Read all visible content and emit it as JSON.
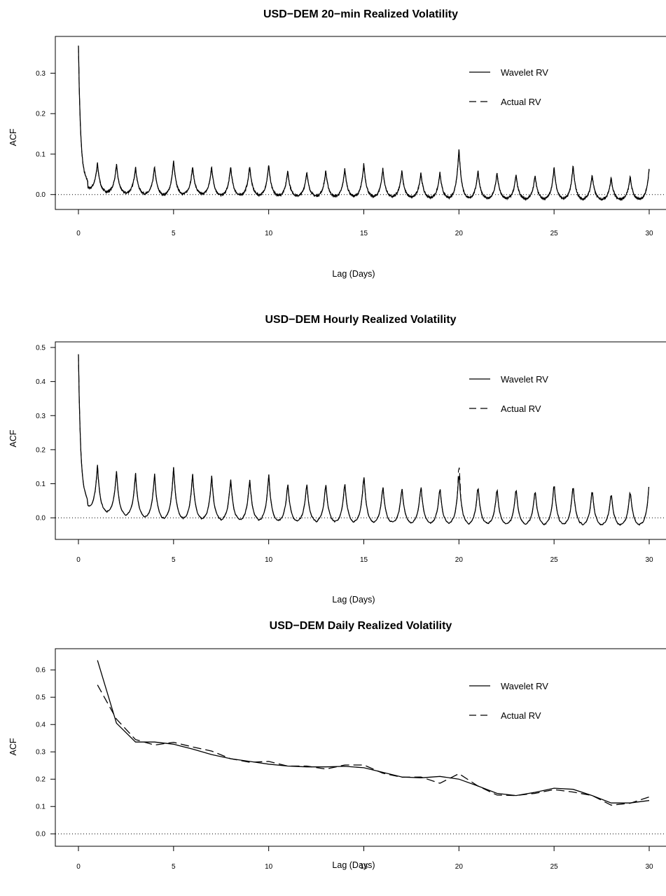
{
  "chart_data": [
    {
      "type": "line",
      "title": "USD−DEM 20−min Realized Volatility",
      "xlabel": "Lag (Days)",
      "ylabel": "ACF",
      "xlim": [
        -1.2,
        30.8
      ],
      "ylim": [
        -0.023,
        0.377
      ],
      "xticks": [
        "0",
        "5",
        "10",
        "15",
        "20",
        "25",
        "30"
      ],
      "yticks": [
        "0.0",
        "0.1",
        "0.2",
        "0.3"
      ],
      "reference_line": 0,
      "legend_position": "top-right",
      "lag_step": 0.0139,
      "series": [
        {
          "name": "Wavelet RV",
          "style": "solid",
          "description": "Sharp decay from 0.37 at lag 0, then daily periodic peaks of roughly 0.05-0.08 with troughs near 0; spike of about 0.115 at lag 20."
        },
        {
          "name": "Actual RV",
          "style": "dashed",
          "description": "Nearly identical to Wavelet RV."
        }
      ],
      "peak_heights": [
        0.078,
        0.075,
        0.069,
        0.07,
        0.085,
        0.07,
        0.07,
        0.07,
        0.072,
        0.075,
        0.06,
        0.057,
        0.06,
        0.065,
        0.077,
        0.065,
        0.06,
        0.055,
        0.055,
        0.115,
        0.06,
        0.055,
        0.05,
        0.048,
        0.068,
        0.072,
        0.05,
        0.042,
        0.045,
        0.065
      ],
      "trough_depths": [
        0.012,
        0.005,
        0.002,
        0.0,
        -0.002,
        0.0,
        0.0,
        -0.003,
        -0.003,
        -0.003,
        -0.004,
        -0.005,
        -0.005,
        -0.006,
        -0.006,
        -0.007,
        -0.007,
        -0.008,
        -0.009,
        -0.01,
        -0.011,
        -0.011,
        -0.011,
        -0.012,
        -0.012,
        -0.012,
        -0.013,
        -0.013,
        -0.013,
        -0.013
      ],
      "start_value": 0.37,
      "decay_floor": 0.05,
      "mismatch": [
        [
          20,
          0.0
        ]
      ]
    },
    {
      "type": "line",
      "title": "USD−DEM Hourly Realized Volatility",
      "xlabel": "Lag (Days)",
      "ylabel": "ACF",
      "xlim": [
        -1.2,
        30.8
      ],
      "ylim": [
        -0.047,
        0.5
      ],
      "xticks": [
        "0",
        "5",
        "10",
        "15",
        "20",
        "25",
        "30"
      ],
      "yticks": [
        "0.0",
        "0.1",
        "0.2",
        "0.3",
        "0.4",
        "0.5"
      ],
      "reference_line": 0,
      "legend_position": "top-right",
      "lag_step": 0.0417,
      "series": [
        {
          "name": "Wavelet RV",
          "style": "solid",
          "description": "Sharp decay from 0.48 at lag 0, then daily periodic peaks of roughly 0.09-0.15 with troughs slightly below 0; peak of about 0.14 at lag 20."
        },
        {
          "name": "Actual RV",
          "style": "dashed",
          "description": "Nearly identical to Wavelet RV; reaches about 0.165 at lag 20."
        }
      ],
      "peak_heights": [
        0.155,
        0.14,
        0.133,
        0.132,
        0.152,
        0.133,
        0.127,
        0.12,
        0.12,
        0.133,
        0.105,
        0.107,
        0.107,
        0.11,
        0.133,
        0.1,
        0.095,
        0.1,
        0.095,
        0.14,
        0.1,
        0.093,
        0.093,
        0.088,
        0.108,
        0.103,
        0.088,
        0.078,
        0.086,
        0.105
      ],
      "trough_depths": [
        0.027,
        0.015,
        0.005,
        0.0,
        -0.005,
        -0.005,
        -0.006,
        -0.008,
        -0.009,
        -0.01,
        -0.011,
        -0.012,
        -0.013,
        -0.014,
        -0.015,
        -0.016,
        -0.016,
        -0.017,
        -0.018,
        -0.019,
        -0.02,
        -0.02,
        -0.021,
        -0.021,
        -0.022,
        -0.022,
        -0.022,
        -0.022,
        -0.023,
        -0.023
      ],
      "start_value": 0.48,
      "decay_floor": 0.08,
      "mismatch": [
        [
          20,
          0.025
        ]
      ]
    },
    {
      "type": "line",
      "title": "USD−DEM Daily Realized Volatility",
      "xlabel": "Lag (Days)",
      "ylabel": "ACF",
      "xlim": [
        -1.2,
        30.8
      ],
      "ylim": [
        -0.025,
        0.657
      ],
      "xticks": [
        "0",
        "5",
        "10",
        "15",
        "20",
        "25",
        "30"
      ],
      "yticks": [
        "0.0",
        "0.1",
        "0.2",
        "0.3",
        "0.4",
        "0.5",
        "0.6"
      ],
      "reference_line": 0,
      "legend_position": "top-right",
      "series": [
        {
          "name": "Wavelet RV",
          "style": "solid",
          "x": [
            1,
            2,
            3,
            4,
            5,
            6,
            7,
            8,
            9,
            10,
            11,
            12,
            13,
            14,
            15,
            16,
            17,
            18,
            19,
            20,
            21,
            22,
            23,
            24,
            25,
            26,
            27,
            28,
            29,
            30
          ],
          "values": [
            0.635,
            0.405,
            0.336,
            0.336,
            0.328,
            0.31,
            0.29,
            0.275,
            0.265,
            0.255,
            0.248,
            0.245,
            0.245,
            0.247,
            0.242,
            0.225,
            0.208,
            0.205,
            0.21,
            0.2,
            0.175,
            0.148,
            0.14,
            0.152,
            0.167,
            0.163,
            0.14,
            0.113,
            0.113,
            0.122
          ]
        },
        {
          "name": "Actual RV",
          "style": "dashed",
          "x": [
            1,
            2,
            3,
            4,
            5,
            6,
            7,
            8,
            9,
            10,
            11,
            12,
            13,
            14,
            15,
            16,
            17,
            18,
            19,
            20,
            21,
            22,
            23,
            24,
            25,
            26,
            27,
            28,
            29,
            30
          ],
          "values": [
            0.545,
            0.42,
            0.345,
            0.325,
            0.335,
            0.318,
            0.303,
            0.275,
            0.262,
            0.265,
            0.248,
            0.248,
            0.237,
            0.252,
            0.252,
            0.222,
            0.207,
            0.208,
            0.185,
            0.22,
            0.175,
            0.142,
            0.14,
            0.148,
            0.162,
            0.153,
            0.14,
            0.105,
            0.112,
            0.135
          ]
        }
      ]
    }
  ]
}
